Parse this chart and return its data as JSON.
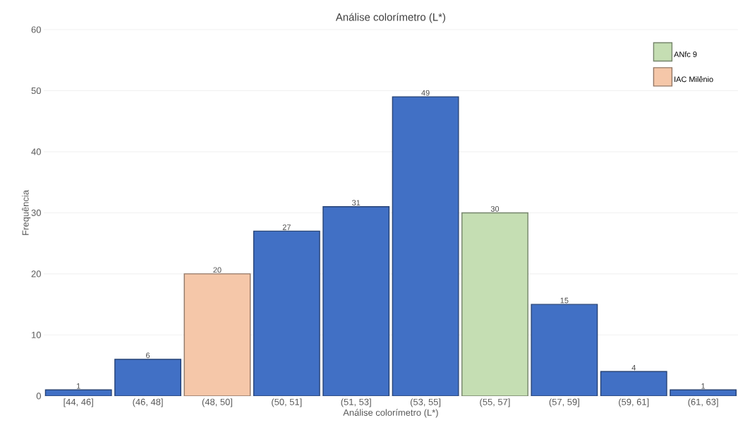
{
  "chart_data": {
    "type": "bar",
    "title": "Análise colorímetro (L*)",
    "xlabel": "Análise colorímetro (L*)",
    "ylabel": "Frequência",
    "categories": [
      "[44, 46]",
      "(46, 48]",
      "(48, 50]",
      "(50, 51]",
      "(51, 53]",
      "(53, 55]",
      "(55, 57]",
      "(57, 59]",
      "(59, 61]",
      "(61, 63]"
    ],
    "series": [
      {
        "color": "#4170c5",
        "values": [
          1,
          6,
          null,
          27,
          31,
          49,
          null,
          15,
          4,
          1
        ]
      },
      {
        "name": "ANfc 9",
        "color": "#c5deb3",
        "values": [
          null,
          null,
          null,
          null,
          null,
          null,
          30,
          null,
          null,
          null
        ]
      },
      {
        "name": "IAC Milênio",
        "color": "#f5c7a9",
        "values": [
          null,
          null,
          20,
          null,
          null,
          null,
          null,
          null,
          null,
          null
        ]
      }
    ],
    "ylim": [
      0,
      60
    ],
    "yticks": [
      0,
      10,
      20,
      30,
      40,
      50,
      60
    ],
    "grid": "y",
    "legend": "top right",
    "data_labels": true
  }
}
